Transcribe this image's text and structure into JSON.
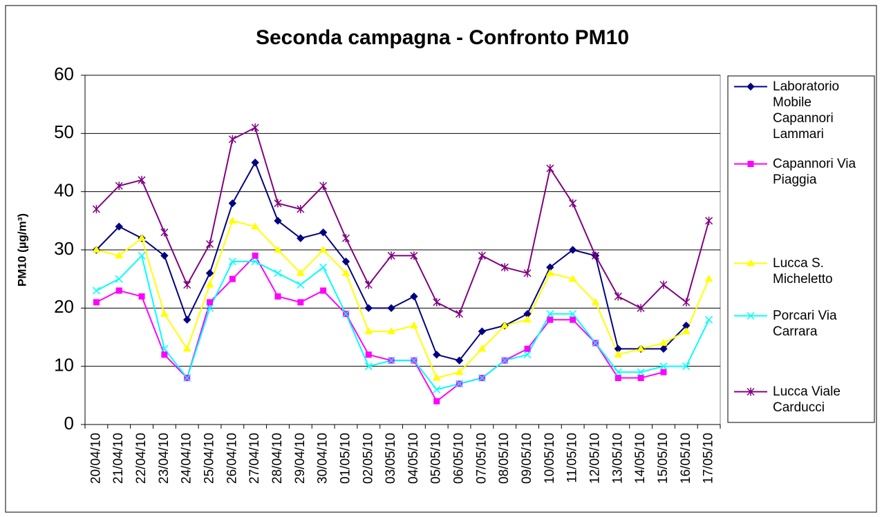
{
  "chart_data": {
    "type": "line",
    "title": "Seconda campagna - Confronto PM10",
    "y_label": "PM10 (µg/m³)",
    "categories": [
      "20/04/10",
      "21/04/10",
      "22/04/10",
      "23/04/10",
      "24/04/10",
      "25/04/10",
      "26/04/10",
      "27/04/10",
      "28/04/10",
      "29/04/10",
      "30/04/10",
      "01/05/10",
      "02/05/10",
      "03/05/10",
      "04/05/10",
      "05/05/10",
      "06/05/10",
      "07/05/10",
      "08/05/10",
      "09/05/10",
      "10/05/10",
      "11/05/10",
      "12/05/10",
      "13/05/10",
      "14/05/10",
      "15/05/10",
      "16/05/10",
      "17/05/10"
    ],
    "ylim": [
      0,
      60
    ],
    "yticks": [
      0,
      10,
      20,
      30,
      40,
      50,
      60
    ],
    "grid": true,
    "legend": "right",
    "series": [
      {
        "name": "Laboratorio Mobile Capannori Lammari",
        "color": "#000080",
        "marker": "diamond",
        "values": [
          30,
          34,
          32,
          29,
          18,
          26,
          38,
          45,
          35,
          32,
          33,
          28,
          20,
          20,
          22,
          12,
          11,
          16,
          17,
          19,
          27,
          30,
          29,
          13,
          13,
          13,
          17,
          null
        ]
      },
      {
        "name": "Capannori Via Piaggia",
        "color": "#ff00ff",
        "marker": "square",
        "values": [
          21,
          23,
          22,
          12,
          8,
          21,
          25,
          29,
          22,
          21,
          23,
          19,
          12,
          11,
          11,
          4,
          7,
          8,
          11,
          13,
          18,
          18,
          14,
          8,
          8,
          9,
          null,
          null
        ]
      },
      {
        "name": "Lucca S. Micheletto",
        "color": "#ffff00",
        "marker": "triangle",
        "values": [
          30,
          29,
          32,
          19,
          13,
          24,
          35,
          34,
          30,
          26,
          30,
          26,
          16,
          16,
          17,
          8,
          9,
          13,
          17,
          18,
          26,
          25,
          21,
          12,
          13,
          14,
          16,
          25
        ]
      },
      {
        "name": "Porcari Via Carrara",
        "color": "#00ffff",
        "marker": "x",
        "values": [
          23,
          25,
          29,
          13,
          8,
          20,
          28,
          28,
          26,
          24,
          27,
          19,
          10,
          11,
          11,
          6,
          7,
          8,
          11,
          12,
          19,
          19,
          14,
          9,
          9,
          10,
          10,
          18
        ]
      },
      {
        "name": "Lucca Viale Carducci",
        "color": "#800080",
        "marker": "star",
        "values": [
          37,
          41,
          42,
          33,
          24,
          31,
          49,
          51,
          38,
          37,
          41,
          32,
          24,
          29,
          29,
          21,
          19,
          29,
          27,
          26,
          44,
          38,
          29,
          22,
          20,
          24,
          21,
          35
        ]
      }
    ]
  }
}
